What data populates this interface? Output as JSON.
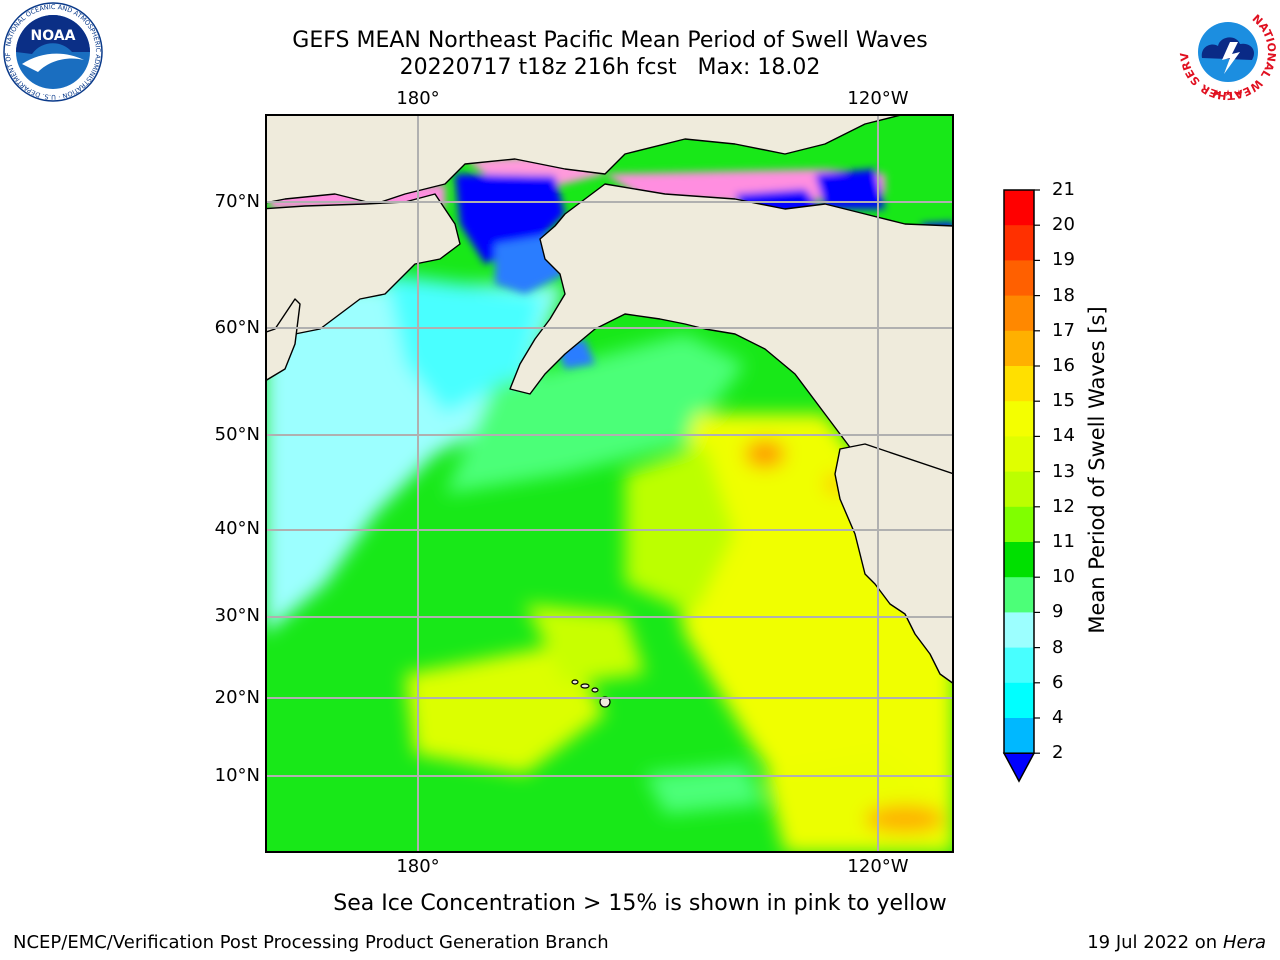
{
  "header": {
    "title": "GEFS MEAN Northeast Pacific Mean Period of Swell Waves",
    "subtitle": "20220717 t18z 216h fcst   Max: 18.02"
  },
  "logos": {
    "noaa": {
      "icon": "noaa-logo",
      "text": "NOAA",
      "ring_text": "NATIONAL OCEANIC AND ATMOSPHERIC ADMINISTRATION · U.S. DEPARTMENT OF COMMERCE"
    },
    "nws": {
      "icon": "nws-logo",
      "ring_text": "NATIONAL WEATHER SERVICE"
    }
  },
  "map": {
    "top_lon_labels": [
      "180°",
      "120°W"
    ],
    "bottom_lon_labels": [
      "180°",
      "120°W"
    ],
    "lat_labels": [
      "70°N",
      "60°N",
      "50°N",
      "40°N",
      "30°N",
      "20°N",
      "10°N"
    ],
    "colors": {
      "land": "#efebdc",
      "grid": "#b0b0b0",
      "coast": "#000000"
    }
  },
  "colorbar": {
    "title": "Mean Period of Swell Waves [s]",
    "labels": [
      "21",
      "20",
      "19",
      "18",
      "17",
      "16",
      "15",
      "14",
      "13",
      "12",
      "11",
      "10",
      "9",
      "8",
      "6",
      "4",
      "2"
    ],
    "colors": [
      "#ff0000",
      "#ff3000",
      "#ff6000",
      "#ff8800",
      "#ffb000",
      "#ffe000",
      "#f4ff00",
      "#e0ff00",
      "#bcff00",
      "#80ff00",
      "#00e000",
      "#4cff78",
      "#9cffff",
      "#48ffff",
      "#00ffff",
      "#00b8ff",
      "#0080ff",
      "#0000ff"
    ],
    "extend_min_color": "#0000ff"
  },
  "caption": "Sea Ice Concentration > 15% is shown in pink to yellow",
  "footer": {
    "left": "NCEP/EMC/Verification Post Processing Product Generation Branch",
    "right_date": "19 Jul 2022 on ",
    "right_host": "Hera"
  }
}
